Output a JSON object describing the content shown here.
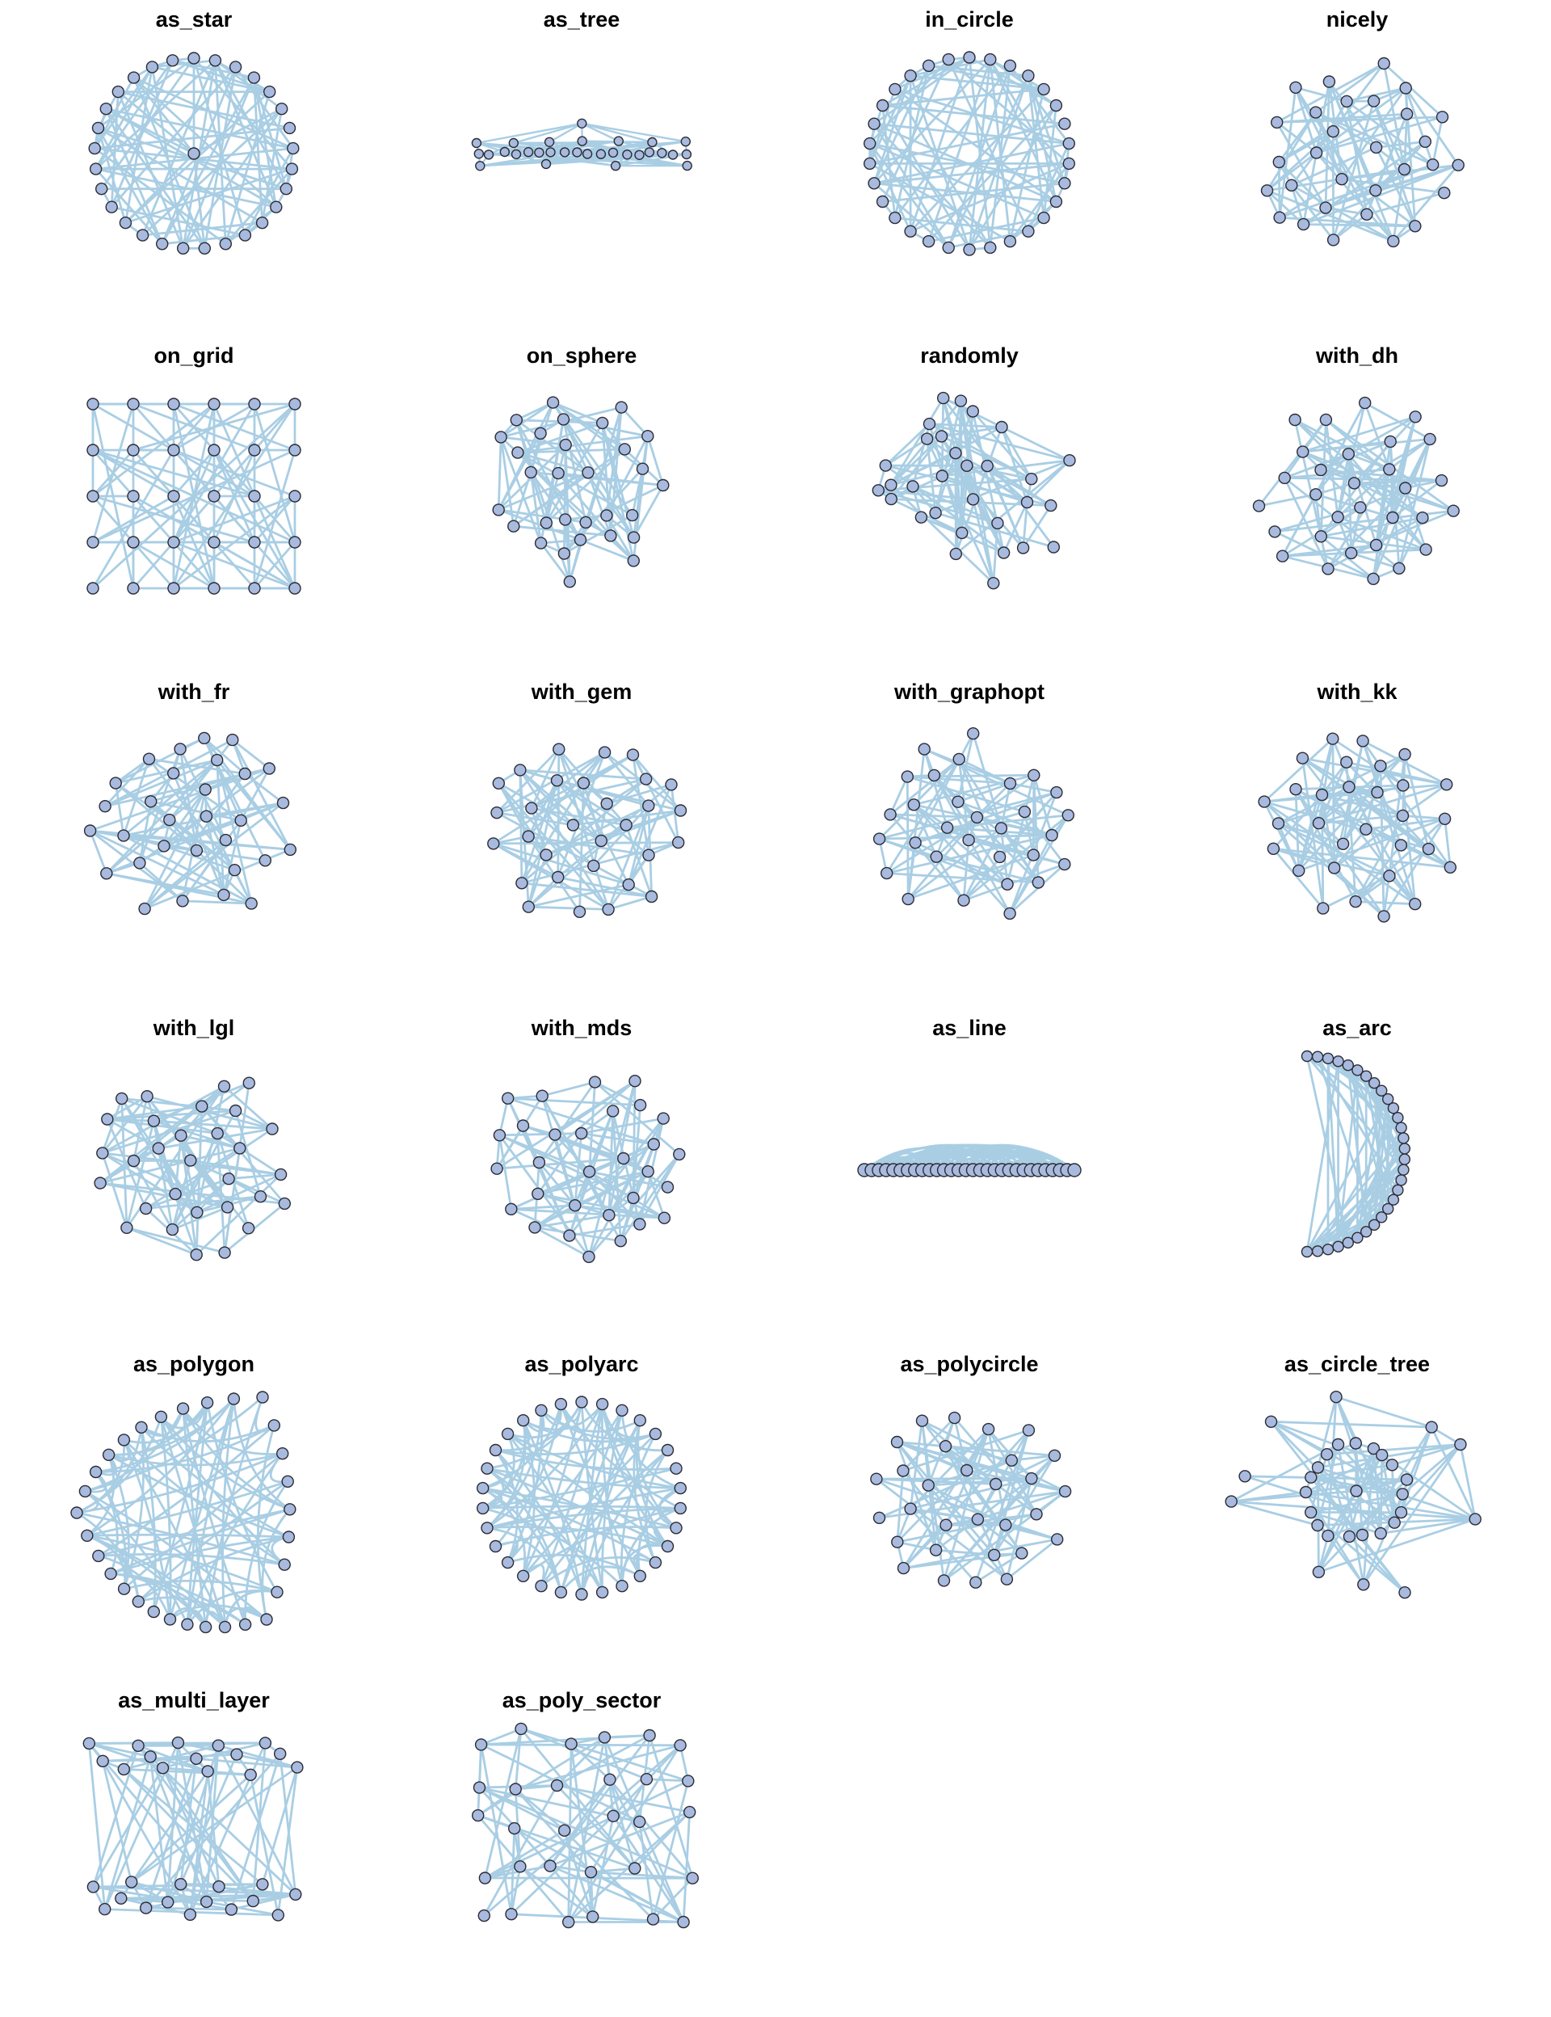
{
  "graph": {
    "node_count": 30,
    "edge_count": 88
  },
  "colors": {
    "background": "#ffffff",
    "title": "#000000",
    "node_fill": "#a9badf",
    "node_stroke": "#2b2b33",
    "edge": "#a9cee4"
  },
  "panels": [
    {
      "label": "as_star",
      "layout": "star"
    },
    {
      "label": "as_tree",
      "layout": "tree"
    },
    {
      "label": "in_circle",
      "layout": "circle"
    },
    {
      "label": "nicely",
      "layout": "force"
    },
    {
      "label": "on_grid",
      "layout": "grid"
    },
    {
      "label": "on_sphere",
      "layout": "sphere"
    },
    {
      "label": "randomly",
      "layout": "random"
    },
    {
      "label": "with_dh",
      "layout": "force"
    },
    {
      "label": "with_fr",
      "layout": "force"
    },
    {
      "label": "with_gem",
      "layout": "force"
    },
    {
      "label": "with_graphopt",
      "layout": "force"
    },
    {
      "label": "with_kk",
      "layout": "force"
    },
    {
      "label": "with_lgl",
      "layout": "force"
    },
    {
      "label": "with_mds",
      "layout": "force"
    },
    {
      "label": "as_line",
      "layout": "line"
    },
    {
      "label": "as_arc",
      "layout": "arc"
    },
    {
      "label": "as_polygon",
      "layout": "polygon"
    },
    {
      "label": "as_polyarc",
      "layout": "polyarc"
    },
    {
      "label": "as_polycircle",
      "layout": "polycircle"
    },
    {
      "label": "as_circle_tree",
      "layout": "circle_tree"
    },
    {
      "label": "as_multi_layer",
      "layout": "multi_layer"
    },
    {
      "label": "as_poly_sector",
      "layout": "scatter_grid"
    }
  ]
}
